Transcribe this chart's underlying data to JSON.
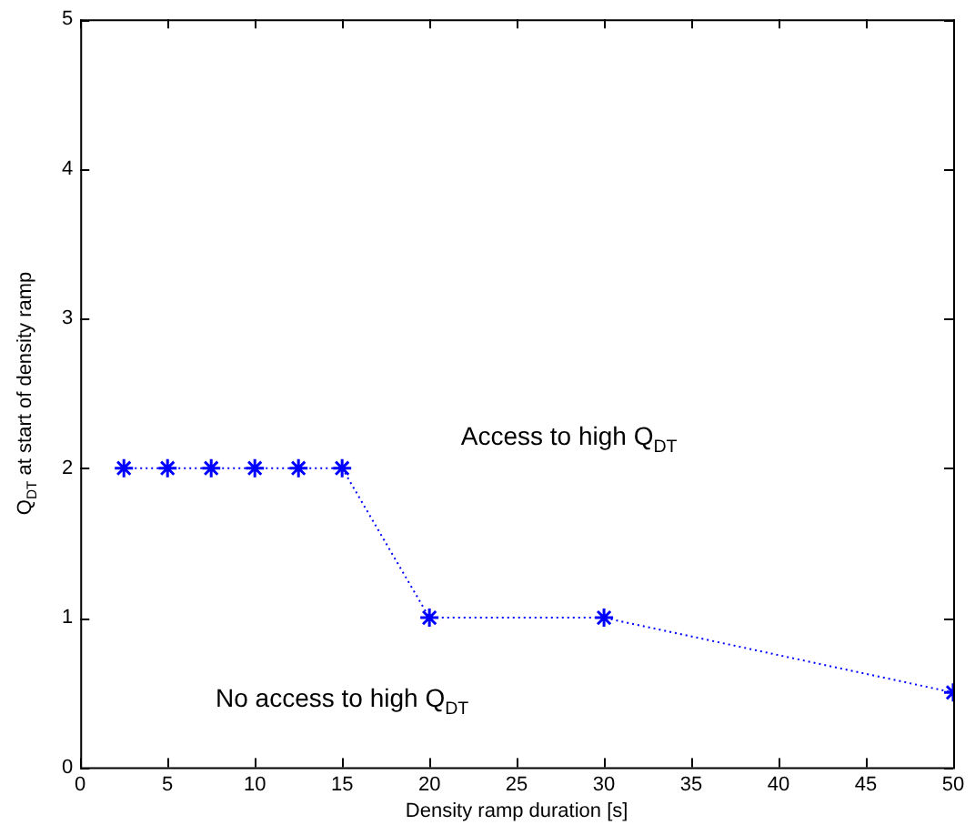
{
  "chart_data": {
    "type": "line",
    "xlabel": "Density ramp duration [s]",
    "ylabel": "Q$_{DT}$ at start of density ramp",
    "x": [
      2.5,
      5,
      7.5,
      10,
      12.5,
      15,
      20,
      30,
      50
    ],
    "series": [
      {
        "color": "#0000ff",
        "values": [
          2,
          2,
          2,
          2,
          2,
          2,
          1,
          1,
          0.5
        ]
      }
    ],
    "xlim": [
      0,
      50
    ],
    "xticks": [
      0,
      5,
      10,
      15,
      20,
      25,
      30,
      35,
      40,
      45,
      50
    ],
    "ylim": [
      0,
      5
    ],
    "yticks": [
      0,
      1,
      2,
      3,
      4,
      5
    ],
    "marker": "cross",
    "line_style": "dotted",
    "grid": false,
    "legend": false,
    "annotations": [
      "Access to high Q$_{DT}$",
      "No access to high Q$_{DT}$"
    ]
  }
}
